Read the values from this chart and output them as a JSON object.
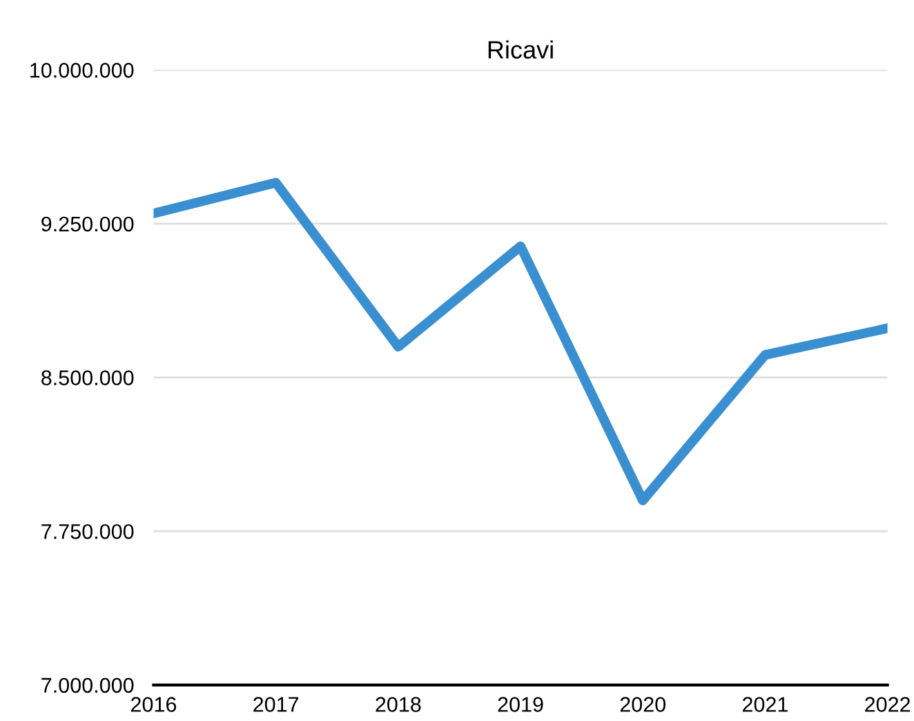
{
  "chart_data": {
    "type": "line",
    "title": "Ricavi",
    "x": [
      2016,
      2017,
      2018,
      2019,
      2020,
      2021,
      2022
    ],
    "series": [
      {
        "color": "#3a8fd0",
        "values": [
          9300000,
          9450000,
          8650000,
          9140000,
          7900000,
          8610000,
          8740000
        ]
      }
    ],
    "xlim": [
      2016,
      2022
    ],
    "xticks": [
      2016,
      2017,
      2018,
      2019,
      2020,
      2021,
      2022
    ],
    "ylim": [
      7000000,
      10000000
    ],
    "yticks": [
      {
        "value": 7000000,
        "label": "7.000.000"
      },
      {
        "value": 7750000,
        "label": "7.750.000"
      },
      {
        "value": 8500000,
        "label": "8.500.000"
      },
      {
        "value": 9250000,
        "label": "9.250.000"
      },
      {
        "value": 10000000,
        "label": "10.000.000"
      }
    ],
    "grid": "y",
    "legend": false,
    "marker": "none",
    "line_style": "solid"
  }
}
